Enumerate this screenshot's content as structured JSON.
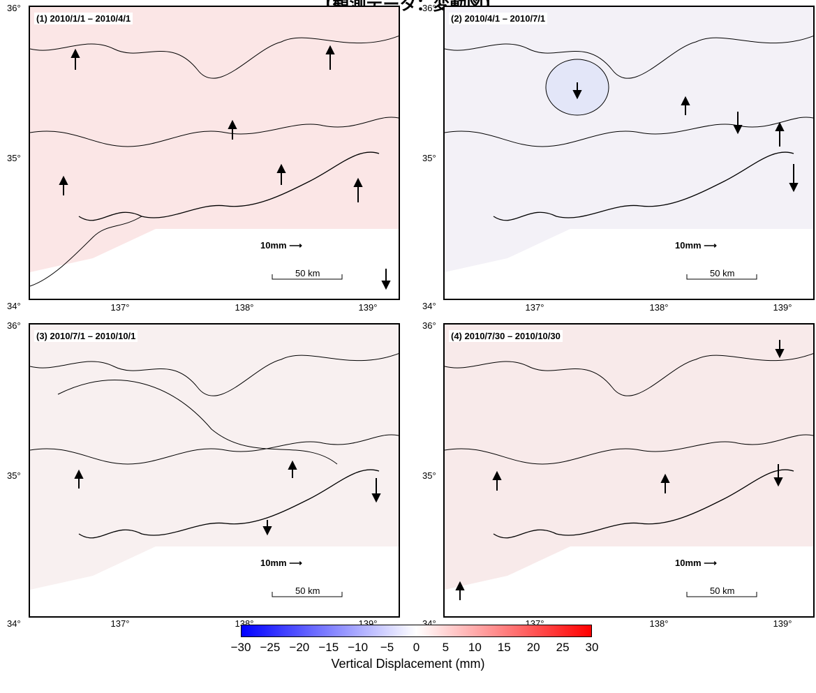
{
  "title": "【観測データ：変動図】",
  "panels": [
    {
      "label": "(1) 2010/1/1 – 2010/4/1",
      "tint": "#fbe6e6",
      "trend": "up"
    },
    {
      "label": "(2) 2010/4/1 – 2010/7/1",
      "tint": "#eef0fa",
      "trend": "mixed"
    },
    {
      "label": "(3) 2010/7/1 – 2010/10/1",
      "tint": "#f9f0f0",
      "trend": "mixed"
    },
    {
      "label": "(4) 2010/7/30 – 2010/10/30",
      "tint": "#f8eaea",
      "trend": "mixed"
    }
  ],
  "scale": {
    "vector": "10mm",
    "distance": "50 km"
  },
  "axes": {
    "lat_labels": [
      "36°",
      "35°",
      "34°"
    ],
    "lon_labels": [
      "137°",
      "138°",
      "139°"
    ]
  },
  "colorbar": {
    "ticks": [
      "−30",
      "−25",
      "−20",
      "−15",
      "−10",
      "−5",
      "0",
      "5",
      "10",
      "15",
      "20",
      "25",
      "30"
    ],
    "label": "Vertical Displacement (mm)",
    "colors": {
      "min": "#0000ff",
      "mid": "#ffffff",
      "max": "#ff0000"
    }
  }
}
